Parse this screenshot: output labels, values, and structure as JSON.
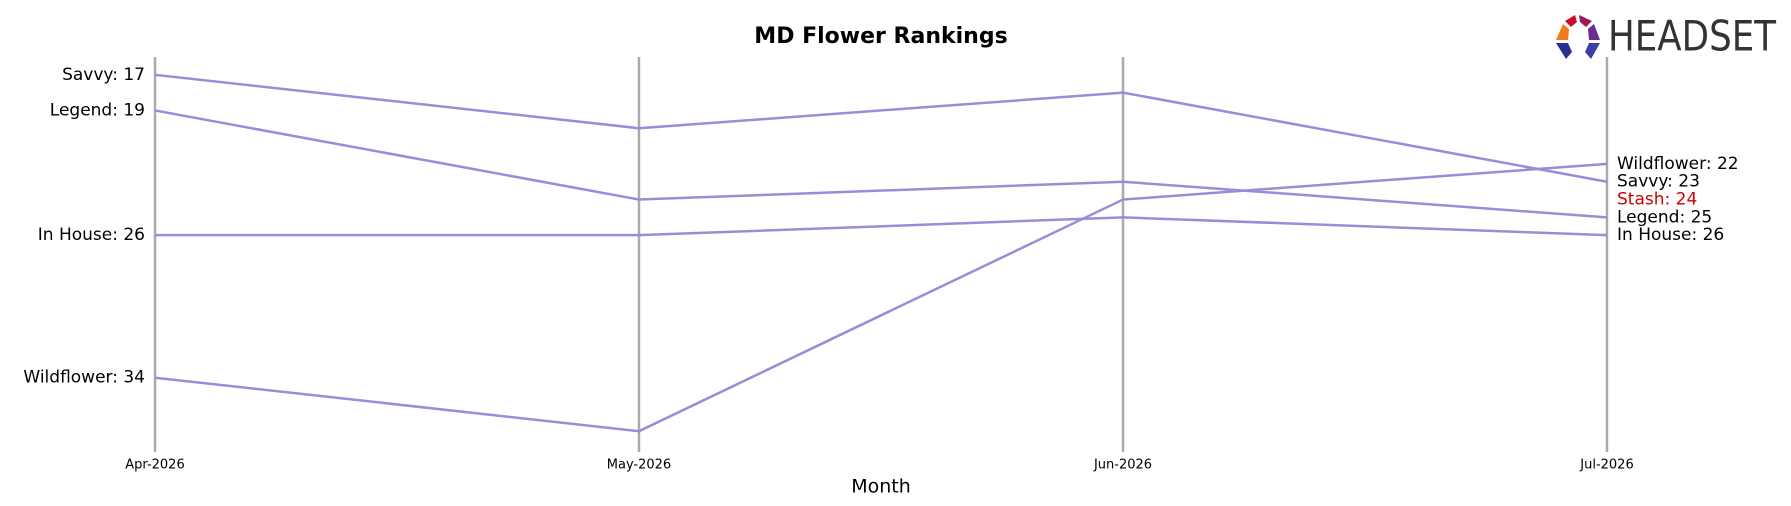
{
  "chart_data": {
    "type": "bump",
    "title": "MD Flower Rankings",
    "xlabel": "Month",
    "logo_text": "HEADSET",
    "categories": [
      "Apr-2026",
      "May-2026",
      "Jun-2026",
      "Jul-2026"
    ],
    "ylim": [
      16,
      38
    ],
    "invert_y": true,
    "series": [
      {
        "name": "Savvy",
        "color": "#9a8cd8",
        "label_color": "#000000",
        "values": [
          17,
          20,
          18,
          23
        ],
        "value_labels": [
          "Savvy: 17",
          null,
          null,
          "Savvy: 23"
        ]
      },
      {
        "name": "Legend",
        "color": "#9a8cd8",
        "label_color": "#000000",
        "values": [
          19,
          24,
          23,
          25
        ],
        "value_labels": [
          "Legend: 19",
          null,
          null,
          "Legend: 25"
        ]
      },
      {
        "name": "In House",
        "color": "#9a8cd8",
        "label_color": "#000000",
        "values": [
          26,
          26,
          25,
          26
        ],
        "value_labels": [
          "In House: 26",
          null,
          null,
          "In House: 26"
        ]
      },
      {
        "name": "Wildflower",
        "color": "#9a8cd8",
        "label_color": "#000000",
        "values": [
          34,
          37,
          24,
          22
        ],
        "value_labels": [
          "Wildflower: 34",
          null,
          null,
          "Wildflower: 22"
        ]
      },
      {
        "name": "Stash",
        "color": "#cc0000",
        "label_color": "#cc0000",
        "values": [
          null,
          null,
          null,
          24
        ],
        "value_labels": [
          null,
          null,
          null,
          "Stash: 24"
        ]
      }
    ]
  }
}
